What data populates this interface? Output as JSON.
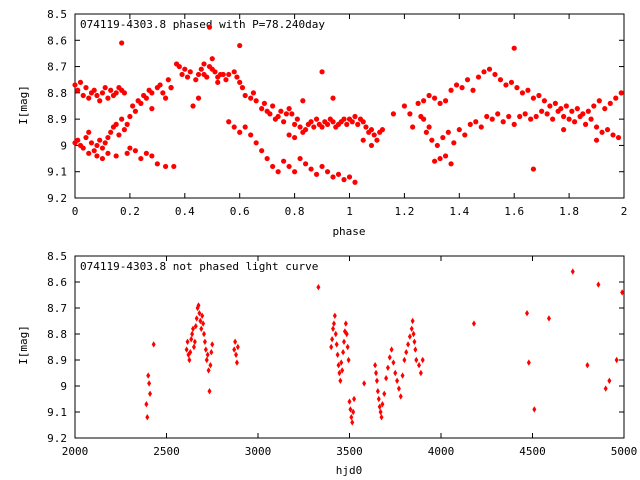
{
  "chart_data": [
    {
      "type": "scatter",
      "title": "074119-4303.8 phased with P=78.240day",
      "xlabel": "phase",
      "ylabel": "I[mag]",
      "xlim": [
        0,
        2
      ],
      "ylim": [
        8.5,
        9.2
      ],
      "y_inverted": true,
      "xticks": [
        "0",
        "0.2",
        "0.4",
        "0.6",
        "0.8",
        "1",
        "1.2",
        "1.4",
        "1.6",
        "1.8",
        "2"
      ],
      "yticks": [
        "8.5",
        "8.6",
        "8.7",
        "8.8",
        "8.9",
        "9",
        "9.1",
        "9.2"
      ],
      "marker": "filled-circle",
      "color": "#ff0000",
      "series": [
        {
          "x": [
            0.0,
            0.01,
            0.02,
            0.03,
            0.04,
            0.05,
            0.06,
            0.07,
            0.08,
            0.09,
            0.1,
            0.11,
            0.12,
            0.13,
            0.14,
            0.15,
            0.16,
            0.17,
            0.18,
            0.0,
            0.01,
            0.02,
            0.03,
            0.04,
            0.05,
            0.06,
            0.07,
            0.08,
            0.09,
            0.1,
            0.11,
            0.12,
            0.13,
            0.14,
            0.15,
            0.16,
            0.17,
            0.18,
            0.19,
            0.2,
            0.21,
            0.22,
            0.23,
            0.24,
            0.25,
            0.26,
            0.27,
            0.28,
            0.3,
            0.31,
            0.32,
            0.33,
            0.34,
            0.35,
            0.37,
            0.38,
            0.39,
            0.4,
            0.41,
            0.42,
            0.44,
            0.45,
            0.46,
            0.47,
            0.48,
            0.49,
            0.5,
            0.51,
            0.52,
            0.53,
            0.55,
            0.56,
            0.58,
            0.59,
            0.6,
            0.61,
            0.62,
            0.64,
            0.65,
            0.66,
            0.68,
            0.69,
            0.7,
            0.71,
            0.72,
            0.73,
            0.74,
            0.75,
            0.76,
            0.77,
            0.78,
            0.79,
            0.8,
            0.81,
            0.82,
            0.83,
            0.84,
            0.85,
            0.86,
            0.87,
            0.88,
            0.89,
            0.9,
            0.91,
            0.92,
            0.93,
            0.94,
            0.95,
            0.96,
            0.97,
            0.98,
            0.99,
            1.0,
            1.01,
            1.02,
            1.03,
            1.04,
            1.05,
            1.06,
            1.07,
            1.08,
            1.09,
            1.1,
            1.11,
            1.12,
            0.05,
            0.08,
            0.1,
            0.12,
            0.15,
            0.19,
            0.2,
            0.22,
            0.24,
            0.26,
            0.28,
            0.3,
            0.33,
            0.36,
            0.56,
            0.58,
            0.6,
            0.62,
            0.64,
            0.66,
            0.68,
            0.7,
            0.72,
            0.74,
            0.76,
            0.78,
            0.8,
            0.82,
            0.84,
            0.86,
            0.88,
            0.9,
            0.92,
            0.94,
            0.96,
            0.98,
            1.0,
            1.02,
            0.17,
            0.49,
            0.6,
            0.83,
            1.6,
            0.28,
            0.5,
            0.47,
            0.35,
            0.43,
            0.45,
            0.52,
            0.54,
            0.9,
            0.94,
            0.78,
            0.8,
            1.05,
            1.08,
            1.16,
            1.2,
            1.22,
            1.25,
            1.27,
            1.29,
            1.31,
            1.33,
            1.35,
            1.37,
            1.39,
            1.41,
            1.43,
            1.45,
            1.47,
            1.49,
            1.51,
            1.53,
            1.55,
            1.57,
            1.59,
            1.61,
            1.63,
            1.65,
            1.67,
            1.69,
            1.71,
            1.73,
            1.75,
            1.77,
            1.79,
            1.81,
            1.83,
            1.85,
            1.87,
            1.89,
            1.91,
            1.93,
            1.95,
            1.97,
            1.99,
            1.23,
            1.26,
            1.28,
            1.3,
            1.32,
            1.34,
            1.36,
            1.38,
            1.4,
            1.42,
            1.44,
            1.46,
            1.48,
            1.5,
            1.52,
            1.54,
            1.56,
            1.58,
            1.6,
            1.62,
            1.64,
            1.66,
            1.68,
            1.7,
            1.72,
            1.74,
            1.76,
            1.78,
            1.8,
            1.82,
            1.84,
            1.86,
            1.88,
            1.9,
            1.92,
            1.94,
            1.96,
            1.98,
            1.31,
            1.33,
            1.35,
            1.37,
            1.29,
            1.27,
            1.67,
            1.78,
            1.9
          ],
          "y": [
            8.77,
            8.79,
            8.76,
            8.81,
            8.78,
            8.82,
            8.8,
            8.79,
            8.81,
            8.83,
            8.8,
            8.78,
            8.82,
            8.79,
            8.81,
            8.8,
            8.78,
            8.79,
            8.8,
            8.99,
            8.98,
            9.0,
            9.01,
            8.97,
            8.95,
            8.99,
            9.02,
            9.0,
            8.98,
            9.01,
            8.99,
            8.97,
            8.95,
            8.93,
            8.92,
            8.96,
            8.9,
            8.94,
            8.92,
            8.89,
            8.85,
            8.87,
            8.83,
            8.84,
            8.81,
            8.82,
            8.79,
            8.8,
            8.78,
            8.77,
            8.8,
            8.82,
            8.75,
            8.78,
            8.69,
            8.7,
            8.73,
            8.71,
            8.74,
            8.72,
            8.75,
            8.73,
            8.71,
            8.73,
            8.74,
            8.7,
            8.71,
            8.72,
            8.74,
            8.73,
            8.75,
            8.73,
            8.72,
            8.74,
            8.76,
            8.78,
            8.81,
            8.82,
            8.8,
            8.83,
            8.86,
            8.84,
            8.87,
            8.88,
            8.85,
            8.9,
            8.89,
            8.87,
            8.91,
            8.88,
            8.86,
            8.88,
            8.92,
            8.9,
            8.93,
            8.95,
            8.94,
            8.92,
            8.91,
            8.93,
            8.9,
            8.92,
            8.93,
            8.91,
            8.92,
            8.9,
            8.91,
            8.93,
            8.92,
            8.91,
            8.9,
            8.92,
            8.9,
            8.91,
            8.89,
            8.92,
            8.9,
            8.91,
            8.93,
            8.95,
            8.94,
            8.96,
            8.98,
            8.95,
            8.94,
            9.03,
            9.04,
            9.05,
            9.03,
            9.04,
            9.03,
            9.01,
            9.02,
            9.05,
            9.03,
            9.04,
            9.07,
            9.08,
            9.08,
            8.91,
            8.93,
            8.95,
            8.93,
            8.96,
            8.99,
            9.02,
            9.05,
            9.08,
            9.1,
            9.06,
            9.08,
            9.1,
            9.05,
            9.07,
            9.09,
            9.11,
            9.08,
            9.1,
            9.12,
            9.11,
            9.13,
            9.12,
            9.14,
            8.61,
            8.55,
            8.62,
            8.83,
            8.63,
            8.86,
            8.67,
            8.69,
            8.78,
            8.85,
            8.82,
            8.76,
            8.73,
            8.72,
            8.82,
            8.96,
            8.97,
            8.98,
            9.0,
            8.88,
            8.85,
            8.88,
            8.84,
            8.83,
            8.81,
            8.82,
            8.84,
            8.83,
            8.79,
            8.77,
            8.78,
            8.75,
            8.79,
            8.74,
            8.72,
            8.71,
            8.73,
            8.75,
            8.77,
            8.76,
            8.78,
            8.8,
            8.79,
            8.82,
            8.81,
            8.83,
            8.85,
            8.84,
            8.86,
            8.85,
            8.87,
            8.86,
            8.88,
            8.87,
            8.85,
            8.83,
            8.86,
            8.84,
            8.82,
            8.8,
            8.93,
            8.89,
            8.95,
            8.98,
            9.0,
            8.97,
            8.95,
            8.99,
            8.94,
            8.96,
            8.92,
            8.91,
            8.93,
            8.89,
            8.9,
            8.88,
            8.91,
            8.89,
            8.92,
            8.89,
            8.88,
            8.9,
            8.89,
            8.87,
            8.88,
            8.9,
            8.87,
            8.89,
            8.9,
            8.91,
            8.89,
            8.92,
            8.9,
            8.93,
            8.95,
            8.94,
            8.96,
            8.97,
            9.06,
            9.05,
            9.04,
            9.07,
            8.93,
            8.9,
            9.09,
            8.94,
            8.98
          ]
        }
      ]
    },
    {
      "type": "scatter",
      "title": "074119-4303.8 not phased light curve",
      "xlabel": "hjd0",
      "ylabel": "I[mag]",
      "xlim": [
        2000,
        5000
      ],
      "ylim": [
        8.5,
        9.2
      ],
      "y_inverted": true,
      "xticks": [
        "2000",
        "2500",
        "3000",
        "3500",
        "4000",
        "4500",
        "5000"
      ],
      "yticks": [
        "8.5",
        "8.6",
        "8.7",
        "8.8",
        "8.9",
        "9",
        "9.1",
        "9.2"
      ],
      "marker": "small-diamond",
      "color": "#ff0000",
      "series": [
        {
          "x": [
            2390,
            2395,
            2400,
            2405,
            2410,
            2430,
            2610,
            2615,
            2620,
            2625,
            2630,
            2635,
            2640,
            2645,
            2650,
            2655,
            2660,
            2665,
            2670,
            2675,
            2680,
            2685,
            2690,
            2695,
            2700,
            2705,
            2710,
            2715,
            2720,
            2725,
            2730,
            2735,
            2740,
            2745,
            2750,
            2870,
            2875,
            2880,
            2885,
            2890,
            3330,
            3400,
            3405,
            3410,
            3415,
            3420,
            3425,
            3430,
            3435,
            3440,
            3445,
            3450,
            3455,
            3460,
            3465,
            3470,
            3475,
            3480,
            3485,
            3490,
            3495,
            3500,
            3505,
            3510,
            3515,
            3520,
            3525,
            3580,
            3640,
            3645,
            3650,
            3655,
            3660,
            3665,
            3670,
            3675,
            3680,
            3690,
            3700,
            3710,
            3720,
            3730,
            3740,
            3750,
            3760,
            3770,
            3780,
            3790,
            3800,
            3810,
            3820,
            3830,
            3840,
            3845,
            3850,
            3855,
            3860,
            3865,
            3880,
            3890,
            3900,
            4180,
            4470,
            4480,
            4510,
            4590,
            4720,
            4800,
            4860,
            4900,
            4920,
            4960,
            4990
          ],
          "y": [
            9.07,
            9.12,
            8.96,
            8.99,
            9.03,
            8.84,
            8.86,
            8.83,
            8.88,
            8.9,
            8.87,
            8.82,
            8.8,
            8.78,
            8.85,
            8.83,
            8.77,
            8.74,
            8.7,
            8.69,
            8.72,
            8.75,
            8.78,
            8.73,
            8.76,
            8.8,
            8.83,
            8.86,
            8.9,
            8.88,
            8.94,
            9.02,
            8.92,
            8.87,
            8.84,
            8.86,
            8.83,
            8.88,
            8.91,
            8.85,
            8.62,
            8.85,
            8.82,
            8.78,
            8.76,
            8.73,
            8.8,
            8.84,
            8.88,
            8.92,
            8.95,
            8.98,
            8.91,
            8.94,
            8.87,
            8.83,
            8.79,
            8.76,
            8.8,
            8.85,
            8.9,
            9.06,
            9.09,
            9.12,
            9.14,
            9.1,
            9.05,
            8.99,
            8.92,
            8.95,
            8.98,
            9.02,
            9.05,
            9.08,
            9.1,
            9.12,
            9.07,
            9.03,
            8.97,
            8.93,
            8.89,
            8.86,
            8.91,
            8.95,
            8.98,
            9.01,
            9.04,
            8.96,
            8.9,
            8.87,
            8.84,
            8.81,
            8.78,
            8.75,
            8.8,
            8.83,
            8.86,
            8.9,
            8.92,
            8.95,
            8.9,
            8.76,
            8.72,
            8.91,
            9.09,
            8.74,
            8.56,
            8.92,
            8.61,
            9.01,
            8.98,
            8.9,
            8.64
          ]
        }
      ]
    }
  ]
}
